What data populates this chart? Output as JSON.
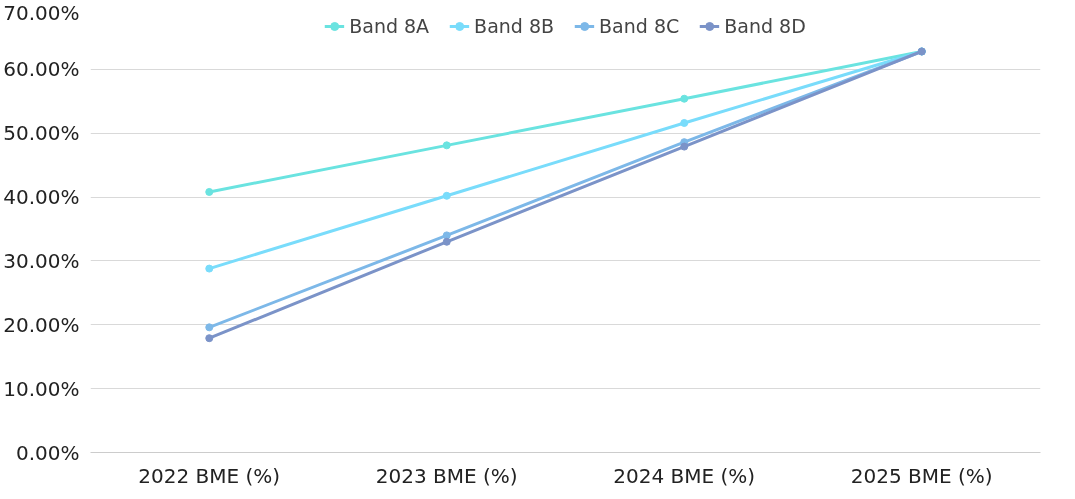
{
  "chart_data": {
    "type": "line",
    "categories": [
      "2022 BME (%)",
      "2023 BME (%)",
      "2024 BME (%)",
      "2025 BME (%)"
    ],
    "series": [
      {
        "name": "Band 8A",
        "color": "#6ae3e0",
        "values": [
          40.8,
          48.1,
          55.4,
          62.8
        ]
      },
      {
        "name": "Band 8B",
        "color": "#79dcfb",
        "values": [
          28.8,
          40.2,
          51.6,
          62.8
        ]
      },
      {
        "name": "Band 8C",
        "color": "#7db8e8",
        "values": [
          19.6,
          34.0,
          48.6,
          62.8
        ]
      },
      {
        "name": "Band 8D",
        "color": "#7b93c8",
        "values": [
          17.9,
          33.0,
          47.9,
          62.8
        ]
      }
    ],
    "ylim": [
      0,
      70
    ],
    "yticks": [
      {
        "value": 0,
        "label": "0.00%"
      },
      {
        "value": 10,
        "label": "10.00%"
      },
      {
        "value": 20,
        "label": "20.00%"
      },
      {
        "value": 30,
        "label": "30.00%"
      },
      {
        "value": 40,
        "label": "40.00%"
      },
      {
        "value": 50,
        "label": "50.00%"
      },
      {
        "value": 60,
        "label": "60.00%"
      },
      {
        "value": 70,
        "label": "70.00%"
      }
    ],
    "grid": "y",
    "legend": "top",
    "marker": "circle",
    "line_style": "solid"
  }
}
